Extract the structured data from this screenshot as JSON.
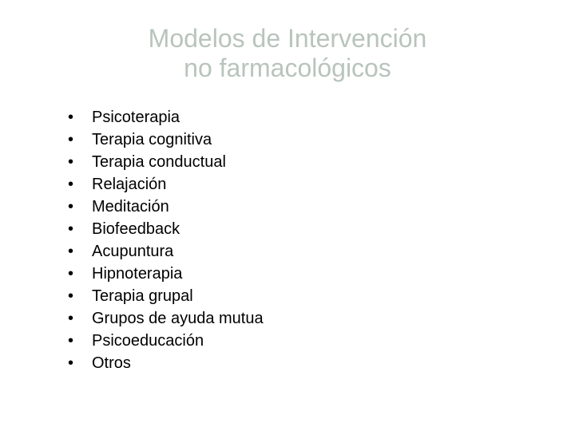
{
  "title": {
    "line1": "Modelos de Intervención",
    "line2": "no farmacológicos",
    "color": "#b8c4bc",
    "fontsize": 32
  },
  "list": {
    "bullet_char": "•",
    "text_color": "#000000",
    "fontsize": 20,
    "items": [
      "Psicoterapia",
      "Terapia cognitiva",
      "Terapia conductual",
      "Relajación",
      "Meditación",
      "Biofeedback",
      "Acupuntura",
      "Hipnoterapia",
      "Terapia grupal",
      "Grupos de ayuda mutua",
      "Psicoeducación",
      "Otros"
    ]
  },
  "background_color": "#ffffff"
}
